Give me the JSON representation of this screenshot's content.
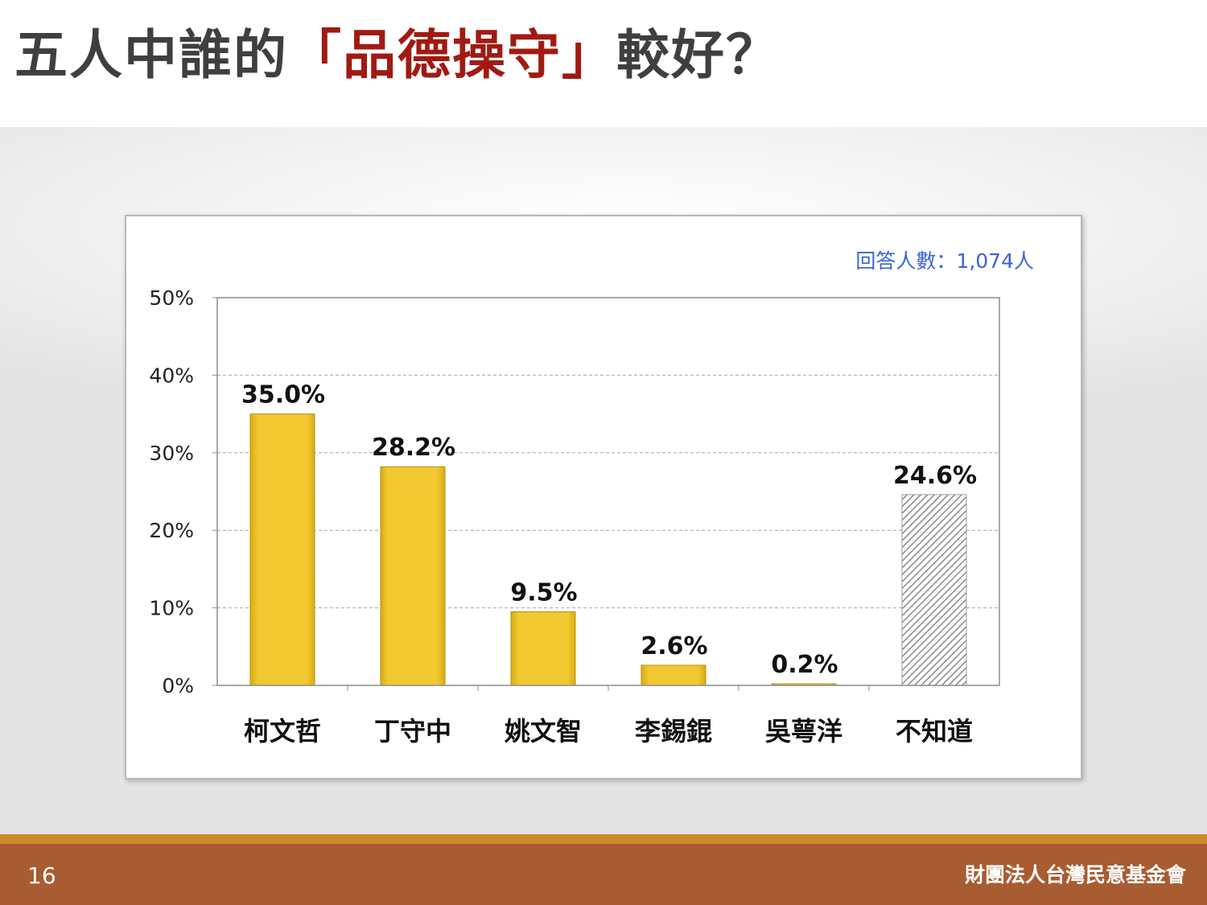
{
  "slide": {
    "title_part1": "五人中誰的",
    "title_highlight": "「品德操守」",
    "title_part2": "較好？",
    "page_number": "16",
    "organization": "財團法人台灣民意基金會",
    "respondent_note": "回答人數：1,074人"
  },
  "colors": {
    "bar": "#f2c830",
    "bar_edge": "#b58f10",
    "title_text": "#3f3f3f",
    "title_highlight": "#a11a12",
    "note_text": "#3a62d9",
    "footer": "#a85c32",
    "footer_stripe": "#cc8a2a"
  },
  "chart_data": {
    "type": "bar",
    "categories": [
      "柯文哲",
      "丁守中",
      "姚文智",
      "李錫錕",
      "吳萼洋",
      "不知道"
    ],
    "values": [
      35.0,
      28.2,
      9.5,
      2.6,
      0.2,
      24.6
    ],
    "value_labels": [
      "35.0%",
      "28.2%",
      "9.5%",
      "2.6%",
      "0.2%",
      "24.6%"
    ],
    "hatched": [
      false,
      false,
      false,
      false,
      false,
      true
    ],
    "ylim": [
      0,
      50
    ],
    "yticks": [
      0,
      10,
      20,
      30,
      40,
      50
    ],
    "ytick_labels": [
      "0%",
      "10%",
      "20%",
      "30%",
      "40%",
      "50%"
    ],
    "grid": true,
    "xlabel": "",
    "ylabel": ""
  }
}
